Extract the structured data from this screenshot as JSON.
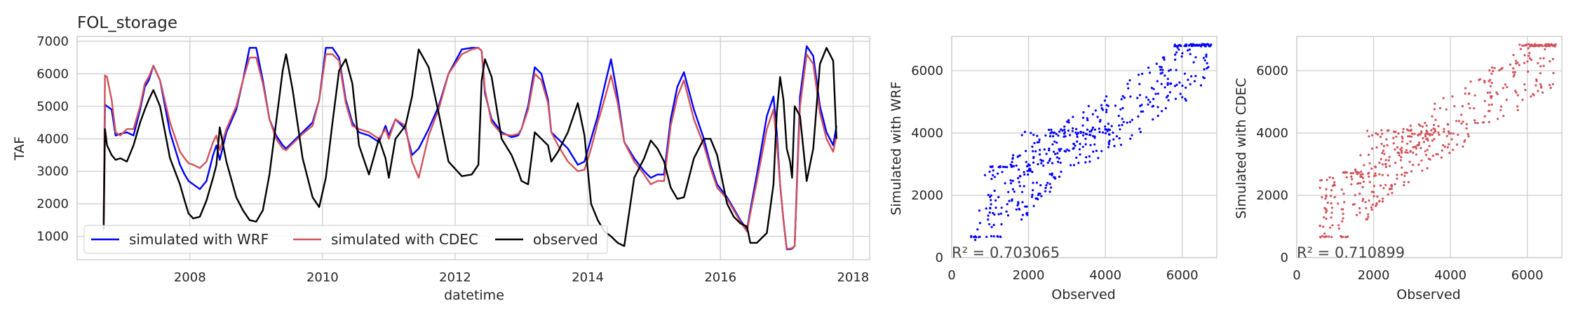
{
  "chart_data": [
    {
      "type": "line",
      "title": "FOL_storage",
      "xlabel": "datetime",
      "ylabel": "TAF",
      "xlim": [
        2006.3,
        2018.25
      ],
      "ylim": [
        280,
        7150
      ],
      "x_ticks": [
        "2008",
        "2010",
        "2012",
        "2014",
        "2016",
        "2018"
      ],
      "y_ticks": [
        "1000",
        "2000",
        "3000",
        "4000",
        "5000",
        "6000",
        "7000"
      ],
      "grid": true,
      "legend": "lower-left, single row",
      "series": [
        {
          "name": "simulated with WRF",
          "color": "#0000ff",
          "x": [
            2006.7,
            2006.72,
            2006.75,
            2006.82,
            2006.88,
            2006.95,
            2007.05,
            2007.15,
            2007.25,
            2007.32,
            2007.38,
            2007.45,
            2007.55,
            2007.7,
            2007.85,
            2007.92,
            2007.98,
            2008.05,
            2008.15,
            2008.25,
            2008.35,
            2008.4,
            2008.45,
            2008.55,
            2008.7,
            2008.8,
            2008.9,
            2009.0,
            2009.1,
            2009.2,
            2009.3,
            2009.4,
            2009.45,
            2009.55,
            2009.7,
            2009.85,
            2009.95,
            2010.05,
            2010.15,
            2010.25,
            2010.35,
            2010.45,
            2010.55,
            2010.7,
            2010.85,
            2010.95,
            2011.0,
            2011.1,
            2011.25,
            2011.35,
            2011.45,
            2011.6,
            2011.75,
            2011.9,
            2012.1,
            2012.25,
            2012.35,
            2012.4,
            2012.45,
            2012.55,
            2012.7,
            2012.85,
            2012.95,
            2013.0,
            2013.1,
            2013.2,
            2013.3,
            2013.4,
            2013.45,
            2013.55,
            2013.7,
            2013.85,
            2013.95,
            2014.05,
            2014.15,
            2014.25,
            2014.35,
            2014.45,
            2014.55,
            2014.7,
            2014.85,
            2014.95,
            2015.05,
            2015.15,
            2015.25,
            2015.35,
            2015.45,
            2015.6,
            2015.75,
            2015.85,
            2015.95,
            2016.1,
            2016.2,
            2016.3,
            2016.4,
            2016.45,
            2016.55,
            2016.7,
            2016.8,
            2016.85,
            2016.9,
            2016.95,
            2017.0,
            2017.05,
            2017.08,
            2017.12,
            2017.2,
            2017.3,
            2017.4,
            2017.5,
            2017.6,
            2017.7,
            2017.75
          ],
          "y": [
            1400,
            5050,
            5000,
            4900,
            4100,
            4150,
            4200,
            4100,
            4900,
            5600,
            5800,
            6250,
            5800,
            4200,
            3200,
            2900,
            2700,
            2600,
            2450,
            2700,
            3500,
            3800,
            3350,
            4200,
            4900,
            5800,
            6800,
            6800,
            5800,
            4600,
            4100,
            3800,
            3700,
            3900,
            4200,
            4500,
            5200,
            6800,
            6800,
            6500,
            5200,
            4500,
            4200,
            4100,
            3900,
            4400,
            4100,
            4600,
            4300,
            3500,
            3700,
            4300,
            5000,
            6000,
            6750,
            6800,
            6800,
            6700,
            5400,
            4600,
            4200,
            4050,
            4100,
            4300,
            5000,
            6200,
            6000,
            5200,
            4200,
            4000,
            3700,
            3200,
            3300,
            4000,
            4700,
            5600,
            6450,
            5300,
            3900,
            3400,
            3000,
            2800,
            2900,
            2900,
            4600,
            5600,
            6050,
            4900,
            4000,
            3200,
            2600,
            2200,
            1850,
            1500,
            1200,
            1800,
            2900,
            4700,
            5300,
            4200,
            2600,
            1500,
            600,
            600,
            620,
            700,
            5300,
            6850,
            6550,
            5000,
            4200,
            3800,
            4400
          ]
        },
        {
          "name": "simulated with CDEC",
          "color": "#d1525a",
          "x": [
            2006.7,
            2006.72,
            2006.75,
            2006.82,
            2006.88,
            2006.95,
            2007.05,
            2007.15,
            2007.25,
            2007.32,
            2007.38,
            2007.45,
            2007.55,
            2007.7,
            2007.85,
            2007.92,
            2007.98,
            2008.05,
            2008.15,
            2008.25,
            2008.35,
            2008.4,
            2008.45,
            2008.55,
            2008.7,
            2008.8,
            2008.9,
            2009.0,
            2009.1,
            2009.2,
            2009.3,
            2009.4,
            2009.45,
            2009.55,
            2009.7,
            2009.85,
            2009.95,
            2010.05,
            2010.15,
            2010.25,
            2010.35,
            2010.45,
            2010.55,
            2010.7,
            2010.85,
            2010.95,
            2011.0,
            2011.1,
            2011.25,
            2011.35,
            2011.45,
            2011.6,
            2011.75,
            2011.9,
            2012.1,
            2012.25,
            2012.35,
            2012.4,
            2012.45,
            2012.55,
            2012.7,
            2012.85,
            2012.95,
            2013.0,
            2013.1,
            2013.2,
            2013.3,
            2013.4,
            2013.45,
            2013.55,
            2013.7,
            2013.85,
            2013.95,
            2014.05,
            2014.15,
            2014.25,
            2014.35,
            2014.45,
            2014.55,
            2014.7,
            2014.85,
            2014.95,
            2015.05,
            2015.15,
            2015.25,
            2015.35,
            2015.45,
            2015.6,
            2015.75,
            2015.85,
            2015.95,
            2016.1,
            2016.2,
            2016.3,
            2016.4,
            2016.45,
            2016.55,
            2016.7,
            2016.8,
            2016.85,
            2016.9,
            2016.95,
            2017.0,
            2017.05,
            2017.08,
            2017.12,
            2017.2,
            2017.3,
            2017.4,
            2017.5,
            2017.6,
            2017.7,
            2017.75
          ],
          "y": [
            1400,
            5950,
            5900,
            5200,
            4200,
            4100,
            4300,
            4300,
            5000,
            5700,
            5900,
            6250,
            5800,
            4500,
            3600,
            3400,
            3250,
            3200,
            3100,
            3300,
            3900,
            4100,
            3650,
            4300,
            5000,
            5800,
            6500,
            6500,
            5700,
            4600,
            4000,
            3700,
            3650,
            3850,
            4150,
            4400,
            5200,
            6600,
            6600,
            6400,
            5100,
            4400,
            4300,
            4200,
            4000,
            4300,
            4000,
            4600,
            4400,
            3300,
            2800,
            4100,
            4900,
            6000,
            6600,
            6750,
            6800,
            6700,
            5500,
            4500,
            4150,
            4100,
            4150,
            4300,
            4900,
            6000,
            5800,
            5100,
            4200,
            3800,
            3300,
            3000,
            3050,
            3700,
            4500,
            5200,
            5950,
            5100,
            3900,
            3300,
            2900,
            2600,
            2700,
            2700,
            4400,
            5300,
            5800,
            4600,
            3800,
            3100,
            2500,
            2150,
            1800,
            1450,
            1150,
            1700,
            2700,
            4300,
            4900,
            3900,
            2600,
            1500,
            620,
            620,
            640,
            700,
            5000,
            6600,
            6300,
            4800,
            4000,
            3600,
            4100
          ]
        },
        {
          "name": "observed",
          "color": "#000000",
          "x": [
            2006.7,
            2006.72,
            2006.75,
            2006.82,
            2006.88,
            2006.95,
            2007.05,
            2007.15,
            2007.25,
            2007.32,
            2007.38,
            2007.45,
            2007.55,
            2007.7,
            2007.85,
            2007.92,
            2007.98,
            2008.05,
            2008.15,
            2008.25,
            2008.35,
            2008.4,
            2008.45,
            2008.55,
            2008.7,
            2008.8,
            2008.9,
            2009.0,
            2009.1,
            2009.2,
            2009.3,
            2009.4,
            2009.45,
            2009.55,
            2009.7,
            2009.85,
            2009.95,
            2010.05,
            2010.15,
            2010.25,
            2010.35,
            2010.45,
            2010.55,
            2010.7,
            2010.85,
            2010.95,
            2011.0,
            2011.1,
            2011.25,
            2011.35,
            2011.45,
            2011.6,
            2011.75,
            2011.9,
            2012.1,
            2012.25,
            2012.35,
            2012.4,
            2012.45,
            2012.55,
            2012.7,
            2012.85,
            2012.95,
            2013.0,
            2013.1,
            2013.2,
            2013.3,
            2013.4,
            2013.45,
            2013.55,
            2013.7,
            2013.85,
            2013.95,
            2014.05,
            2014.15,
            2014.25,
            2014.35,
            2014.45,
            2014.55,
            2014.7,
            2014.85,
            2014.95,
            2015.05,
            2015.15,
            2015.25,
            2015.35,
            2015.45,
            2015.6,
            2015.75,
            2015.85,
            2015.95,
            2016.1,
            2016.2,
            2016.3,
            2016.4,
            2016.45,
            2016.55,
            2016.7,
            2016.8,
            2016.85,
            2016.9,
            2016.95,
            2017.0,
            2017.05,
            2017.08,
            2017.12,
            2017.2,
            2017.3,
            2017.4,
            2017.5,
            2017.6,
            2017.7,
            2017.75
          ],
          "y": [
            1200,
            4300,
            3800,
            3500,
            3350,
            3400,
            3300,
            3800,
            4500,
            4900,
            5200,
            5500,
            5000,
            3400,
            2600,
            2100,
            1700,
            1550,
            1600,
            2100,
            2800,
            3200,
            4350,
            3300,
            2200,
            1800,
            1500,
            1450,
            1800,
            2900,
            4500,
            6100,
            6600,
            5500,
            3400,
            2200,
            1900,
            2800,
            4500,
            6100,
            6450,
            5700,
            3800,
            2900,
            4000,
            3400,
            2800,
            4000,
            4400,
            5300,
            6750,
            6200,
            4800,
            3300,
            2850,
            2900,
            3200,
            5800,
            6450,
            5900,
            4000,
            3500,
            3000,
            2700,
            2600,
            4200,
            4000,
            3800,
            3300,
            3600,
            4200,
            5100,
            4100,
            2000,
            1500,
            1150,
            1000,
            800,
            700,
            2800,
            3400,
            3950,
            3700,
            3300,
            2500,
            2150,
            2200,
            3400,
            4000,
            4000,
            3500,
            2000,
            1600,
            1400,
            1300,
            800,
            800,
            1100,
            2600,
            4800,
            5900,
            5200,
            3700,
            3300,
            2800,
            5000,
            4700,
            2700,
            3700,
            6300,
            6800,
            6400,
            4000
          ]
        }
      ]
    },
    {
      "type": "scatter",
      "xlabel": "Observed",
      "ylabel": "Simulated with WRF",
      "xlim": [
        0,
        6900
      ],
      "ylim": [
        0,
        7100
      ],
      "x_ticks": [
        "0",
        "2000",
        "4000",
        "6000"
      ],
      "y_ticks": [
        "0",
        "2000",
        "4000",
        "6000"
      ],
      "annotation": "R² = 0.703065",
      "color": "#0000ff",
      "grid": true,
      "points_note": "approx. 450 points, estimated distribution along the diagonal"
    },
    {
      "type": "scatter",
      "xlabel": "Observed",
      "ylabel": "Simulated with CDEC",
      "xlim": [
        0,
        6900
      ],
      "ylim": [
        0,
        7100
      ],
      "x_ticks": [
        "0",
        "2000",
        "4000",
        "6000"
      ],
      "y_ticks": [
        "0",
        "2000",
        "4000",
        "6000"
      ],
      "annotation": "R² = 0.710899",
      "color": "#d1525a",
      "grid": true,
      "points_note": "approx. 450 points, estimated distribution along the diagonal"
    }
  ]
}
